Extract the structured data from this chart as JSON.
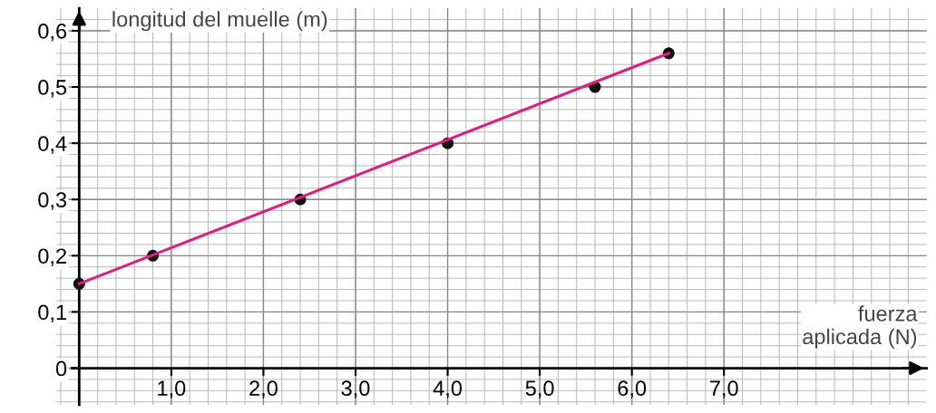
{
  "chart_data": {
    "type": "scatter",
    "xlabel": "fuerza\naplicada (N)",
    "ylabel": "longitud del muelle (m)",
    "x": [
      0,
      0.8,
      2.4,
      4.0,
      5.6,
      6.4
    ],
    "series": [
      {
        "type": "scatter",
        "color": "#111111",
        "marker": "circle",
        "values": [
          0.15,
          0.2,
          0.3,
          0.4,
          0.5,
          0.56
        ]
      },
      {
        "type": "line",
        "color": "#e6197f",
        "marker": "none",
        "x": [
          0,
          6.4
        ],
        "values": [
          0.15,
          0.56
        ]
      }
    ],
    "xlim": [
      -0.25,
      9.2
    ],
    "ylim": [
      -0.065,
      0.64
    ],
    "xticks": [
      {
        "value": 1,
        "label": "1,0"
      },
      {
        "value": 2,
        "label": "2,0"
      },
      {
        "value": 3,
        "label": "3,0"
      },
      {
        "value": 4,
        "label": "4,0"
      },
      {
        "value": 5,
        "label": "5,0"
      },
      {
        "value": 6,
        "label": "6,0"
      },
      {
        "value": 7,
        "label": "7,0"
      }
    ],
    "yticks": [
      {
        "value": 0,
        "label": "0"
      },
      {
        "value": 0.1,
        "label": "0,1"
      },
      {
        "value": 0.2,
        "label": "0,2"
      },
      {
        "value": 0.3,
        "label": "0,3"
      },
      {
        "value": 0.4,
        "label": "0,4"
      },
      {
        "value": 0.5,
        "label": "0,5"
      },
      {
        "value": 0.6,
        "label": "0,6"
      }
    ],
    "grid": true
  }
}
